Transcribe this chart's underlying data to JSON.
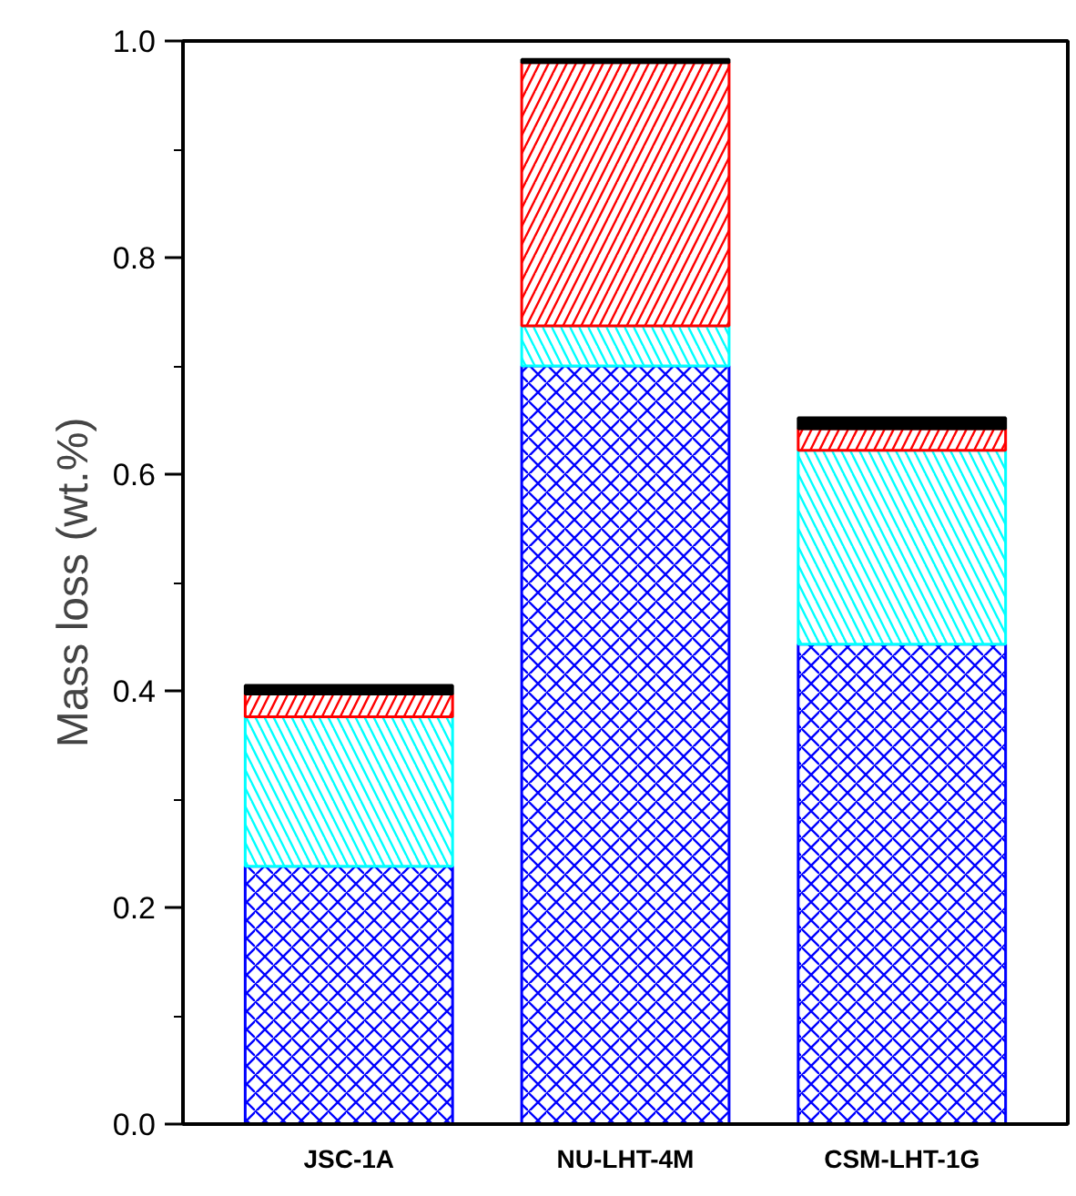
{
  "chart_data": {
    "type": "bar",
    "stacked": true,
    "ylabel": "Mass loss (wt.%)",
    "categories": [
      "JSC-1A",
      "NU-LHT-4M",
      "CSM-LHT-1G"
    ],
    "series": [
      {
        "color": "#0000ff",
        "values": [
          0.238,
          0.7,
          0.443
        ]
      },
      {
        "color": "#00ffff",
        "values": [
          0.138,
          0.037,
          0.179
        ]
      },
      {
        "color": "#ff0000",
        "values": [
          0.021,
          0.243,
          0.02
        ]
      },
      {
        "color": "#000000",
        "values": [
          0.008,
          0.003,
          0.01
        ]
      }
    ],
    "ylim": [
      0,
      1.0
    ],
    "yticks": [
      {
        "value": 0,
        "label": "0.0"
      },
      {
        "value": 0.1,
        "label": null
      },
      {
        "value": 0.2,
        "label": "0.2"
      },
      {
        "value": 0.3,
        "label": null
      },
      {
        "value": 0.4,
        "label": "0.4"
      },
      {
        "value": 0.5,
        "label": null
      },
      {
        "value": 0.6,
        "label": "0.6"
      },
      {
        "value": 0.7,
        "label": null
      },
      {
        "value": 0.8,
        "label": "0.8"
      },
      {
        "value": 0.9,
        "label": null
      },
      {
        "value": 1,
        "label": "1.0"
      }
    ],
    "grid": false
  }
}
